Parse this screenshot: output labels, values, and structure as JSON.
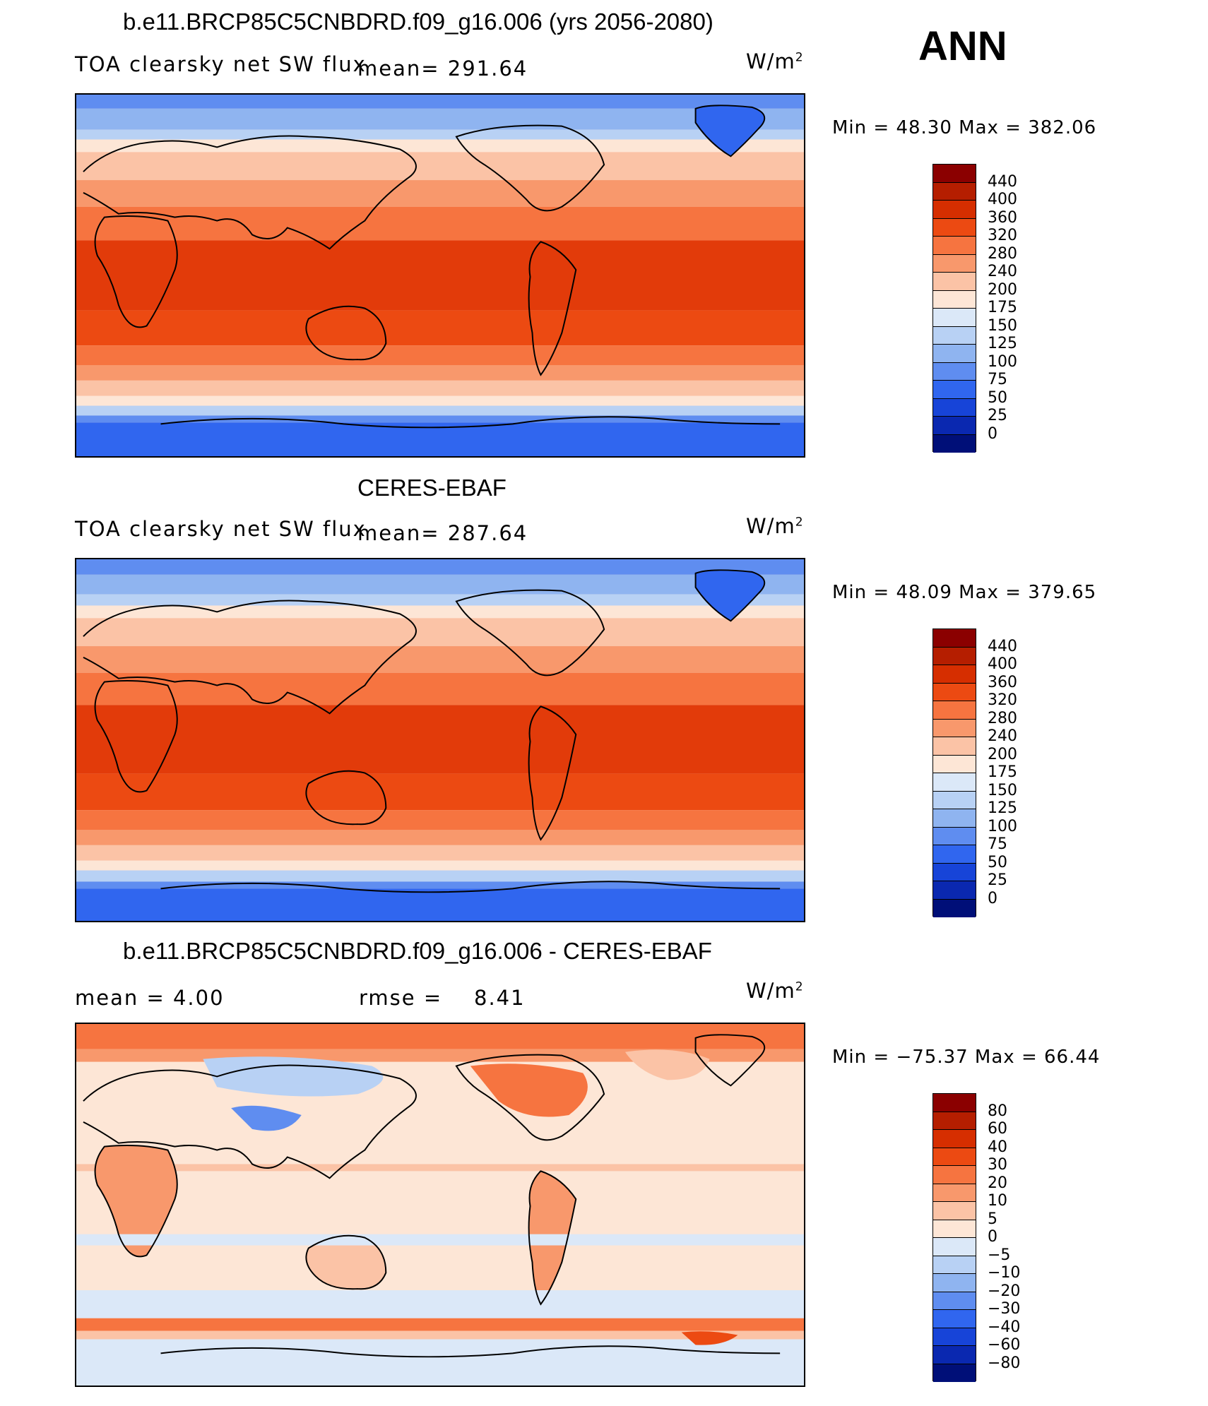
{
  "season": "ANN",
  "panels": [
    {
      "title": "b.e11.BRCP85C5CNBDRD.f09_g16.006 (yrs 2056-2080)",
      "left_label": "TOA clearsky net SW flux",
      "stat_label": "mean=",
      "stat_value": "291.64",
      "units_base": "W/m",
      "units_exp": "2",
      "minmax_text": "Min =   48.30 Max =  382.06",
      "palette": "abs"
    },
    {
      "title": "CERES-EBAF",
      "left_label": "TOA clearsky net SW flux",
      "stat_label": "mean=",
      "stat_value": "287.64",
      "units_base": "W/m",
      "units_exp": "2",
      "minmax_text": "Min =   48.09 Max =  379.65",
      "palette": "abs"
    },
    {
      "title": "b.e11.BRCP85C5CNBDRD.f09_g16.006 - CERES-EBAF",
      "left_label": "mean =    4.00",
      "stat_label": "rmse =",
      "stat_value": "8.41",
      "units_base": "W/m",
      "units_exp": "2",
      "minmax_text": "Min = −75.37 Max =   66.44",
      "palette": "diff"
    }
  ],
  "colorbars": {
    "abs": {
      "levels": [
        "440",
        "400",
        "360",
        "320",
        "280",
        "240",
        "200",
        "175",
        "150",
        "125",
        "100",
        "75",
        "50",
        "25",
        "0"
      ],
      "colors": [
        "#8b0000",
        "#b51e00",
        "#d62e00",
        "#ec4a12",
        "#f67440",
        "#f8986c",
        "#fbc3a6",
        "#fde6d6",
        "#dbe8f8",
        "#b8d1f4",
        "#8fb4f0",
        "#5f8df0",
        "#3066ef",
        "#1744d8",
        "#0a28b0",
        "#000f78"
      ]
    },
    "diff": {
      "levels": [
        "80",
        "60",
        "40",
        "30",
        "20",
        "10",
        "5",
        "0",
        "−5",
        "−10",
        "−20",
        "−30",
        "−40",
        "−60",
        "−80"
      ],
      "colors": [
        "#8b0000",
        "#b51e00",
        "#d62e00",
        "#ec4a12",
        "#f67440",
        "#f8986c",
        "#fbc3a6",
        "#fde6d6",
        "#dbe8f8",
        "#b8d1f4",
        "#8fb4f0",
        "#5f8df0",
        "#3066ef",
        "#1744d8",
        "#0a28b0",
        "#000f78"
      ]
    }
  }
}
